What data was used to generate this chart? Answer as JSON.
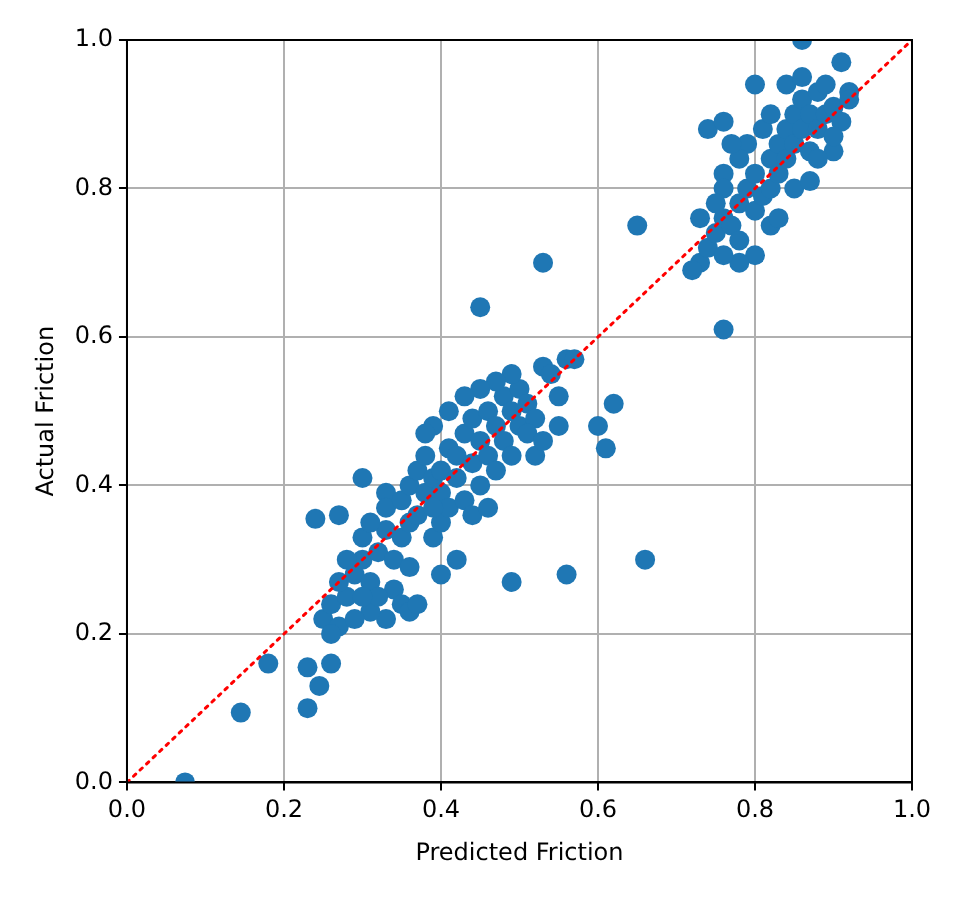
{
  "chart_data": {
    "type": "scatter",
    "xlabel": "Predicted Friction",
    "ylabel": "Actual Friction",
    "xlim": [
      0,
      1
    ],
    "ylim": [
      0,
      1
    ],
    "xticks": [
      {
        "value": 0,
        "label": "0.0"
      },
      0.2,
      0.4,
      0.6,
      0.8,
      {
        "value": 1,
        "label": "1.0"
      }
    ],
    "yticks": [
      {
        "value": 0,
        "label": "0.0"
      },
      0.2,
      0.4,
      0.6,
      0.8,
      {
        "value": 1,
        "label": "1.0"
      }
    ],
    "grid": true,
    "series": [
      {
        "type": "scatter",
        "color": "#1f77b4",
        "marker": "circle",
        "x": [
          0.074,
          0.145,
          0.18,
          0.23,
          0.245,
          0.23,
          0.26,
          0.24,
          0.27,
          0.3,
          0.33,
          0.49,
          0.56,
          0.66,
          0.61,
          0.6,
          0.62,
          0.53,
          0.56,
          0.53,
          0.45,
          0.65,
          0.76,
          0.86,
          0.91,
          0.8,
          0.74,
          0.76,
          0.76,
          0.73,
          0.73,
          0.72,
          0.82,
          0.9,
          0.92,
          0.25,
          0.26,
          0.27,
          0.28,
          0.27,
          0.29,
          0.3,
          0.28,
          0.31,
          0.32,
          0.3,
          0.33,
          0.31,
          0.34,
          0.35,
          0.33,
          0.36,
          0.35,
          0.37,
          0.36,
          0.38,
          0.37,
          0.39,
          0.38,
          0.4,
          0.4,
          0.41,
          0.42,
          0.42,
          0.43,
          0.44,
          0.44,
          0.45,
          0.46,
          0.46,
          0.47,
          0.48,
          0.48,
          0.49,
          0.5,
          0.5,
          0.51,
          0.52,
          0.49,
          0.47,
          0.45,
          0.43,
          0.41,
          0.39,
          0.38,
          0.34,
          0.35,
          0.36,
          0.37,
          0.33,
          0.31,
          0.29,
          0.26,
          0.39,
          0.4,
          0.41,
          0.43,
          0.45,
          0.47,
          0.49,
          0.51,
          0.52,
          0.55,
          0.53,
          0.55,
          0.54,
          0.57,
          0.32,
          0.3,
          0.39,
          0.44,
          0.46,
          0.42,
          0.4,
          0.36,
          0.74,
          0.75,
          0.76,
          0.77,
          0.78,
          0.78,
          0.79,
          0.8,
          0.8,
          0.81,
          0.82,
          0.82,
          0.83,
          0.83,
          0.84,
          0.84,
          0.85,
          0.85,
          0.86,
          0.86,
          0.87,
          0.87,
          0.88,
          0.88,
          0.89,
          0.89,
          0.9,
          0.91,
          0.92,
          0.9,
          0.79,
          0.78,
          0.77,
          0.76,
          0.75,
          0.81,
          0.82,
          0.84,
          0.86,
          0.83,
          0.85,
          0.88,
          0.87,
          0.8,
          0.78,
          0.76
        ],
        "values": [
          0.0,
          0.094,
          0.16,
          0.1,
          0.13,
          0.155,
          0.16,
          0.355,
          0.36,
          0.41,
          0.39,
          0.27,
          0.28,
          0.3,
          0.45,
          0.48,
          0.51,
          0.56,
          0.57,
          0.7,
          0.64,
          0.75,
          0.61,
          1.0,
          0.97,
          0.94,
          0.88,
          0.89,
          0.82,
          0.76,
          0.7,
          0.69,
          0.75,
          0.85,
          0.93,
          0.22,
          0.24,
          0.21,
          0.25,
          0.27,
          0.28,
          0.3,
          0.3,
          0.27,
          0.31,
          0.33,
          0.34,
          0.35,
          0.3,
          0.33,
          0.37,
          0.35,
          0.38,
          0.36,
          0.4,
          0.39,
          0.42,
          0.41,
          0.44,
          0.42,
          0.39,
          0.45,
          0.41,
          0.44,
          0.47,
          0.43,
          0.49,
          0.46,
          0.5,
          0.44,
          0.48,
          0.52,
          0.46,
          0.5,
          0.53,
          0.48,
          0.51,
          0.49,
          0.55,
          0.54,
          0.53,
          0.52,
          0.5,
          0.48,
          0.47,
          0.26,
          0.24,
          0.23,
          0.24,
          0.22,
          0.23,
          0.22,
          0.2,
          0.33,
          0.35,
          0.37,
          0.38,
          0.4,
          0.42,
          0.44,
          0.47,
          0.44,
          0.48,
          0.46,
          0.52,
          0.55,
          0.57,
          0.25,
          0.25,
          0.37,
          0.36,
          0.37,
          0.3,
          0.28,
          0.29,
          0.72,
          0.74,
          0.76,
          0.75,
          0.78,
          0.73,
          0.8,
          0.77,
          0.82,
          0.79,
          0.84,
          0.8,
          0.86,
          0.82,
          0.88,
          0.84,
          0.9,
          0.86,
          0.88,
          0.92,
          0.85,
          0.9,
          0.93,
          0.88,
          0.9,
          0.94,
          0.91,
          0.89,
          0.92,
          0.87,
          0.86,
          0.84,
          0.86,
          0.8,
          0.78,
          0.88,
          0.9,
          0.94,
          0.95,
          0.76,
          0.8,
          0.84,
          0.81,
          0.71,
          0.7,
          0.71
        ]
      },
      {
        "type": "line",
        "color": "#ff0000",
        "marker": "none",
        "line_style": "dotted",
        "x": [
          0,
          1
        ],
        "values": [
          0,
          1
        ]
      }
    ]
  }
}
